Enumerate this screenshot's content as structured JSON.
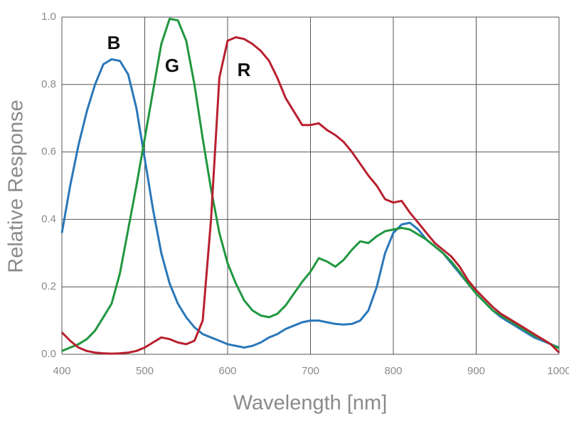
{
  "chart_data": {
    "type": "line",
    "xlabel": "Wavelength [nm]",
    "ylabel": "Relative Response",
    "xlim": [
      400,
      1000
    ],
    "ylim": [
      0,
      1
    ],
    "xticks": [
      400,
      500,
      600,
      700,
      800,
      900,
      1000
    ],
    "yticks": [
      {
        "value": 0,
        "label": "0.0"
      },
      0.2,
      0.4,
      0.6,
      0.8,
      {
        "value": 1,
        "label": "1.0"
      }
    ],
    "grid": true,
    "x": [
      400,
      410,
      420,
      430,
      440,
      450,
      460,
      470,
      480,
      490,
      500,
      510,
      520,
      530,
      540,
      550,
      560,
      570,
      580,
      590,
      600,
      610,
      620,
      630,
      640,
      650,
      660,
      670,
      680,
      690,
      700,
      710,
      720,
      730,
      740,
      750,
      760,
      770,
      780,
      790,
      800,
      810,
      820,
      830,
      840,
      850,
      860,
      870,
      880,
      890,
      900,
      910,
      920,
      930,
      940,
      950,
      960,
      970,
      980,
      990,
      1000
    ],
    "series": [
      {
        "name": "B",
        "color": "#2a77b9",
        "values": [
          0.36,
          0.5,
          0.62,
          0.72,
          0.8,
          0.86,
          0.875,
          0.87,
          0.83,
          0.73,
          0.58,
          0.43,
          0.3,
          0.21,
          0.15,
          0.11,
          0.08,
          0.06,
          0.05,
          0.04,
          0.03,
          0.025,
          0.02,
          0.025,
          0.035,
          0.05,
          0.06,
          0.075,
          0.085,
          0.095,
          0.1,
          0.1,
          0.095,
          0.09,
          0.088,
          0.09,
          0.1,
          0.13,
          0.2,
          0.3,
          0.36,
          0.385,
          0.39,
          0.37,
          0.34,
          0.32,
          0.3,
          0.27,
          0.24,
          0.21,
          0.18,
          0.155,
          0.13,
          0.11,
          0.095,
          0.08,
          0.065,
          0.05,
          0.04,
          0.03,
          0.02
        ]
      },
      {
        "name": "G",
        "color": "#20973f",
        "values": [
          0.01,
          0.02,
          0.03,
          0.045,
          0.07,
          0.11,
          0.15,
          0.24,
          0.37,
          0.5,
          0.64,
          0.78,
          0.92,
          0.995,
          0.99,
          0.93,
          0.8,
          0.64,
          0.49,
          0.36,
          0.27,
          0.21,
          0.16,
          0.13,
          0.115,
          0.11,
          0.12,
          0.145,
          0.18,
          0.215,
          0.245,
          0.285,
          0.275,
          0.26,
          0.28,
          0.31,
          0.335,
          0.33,
          0.35,
          0.365,
          0.37,
          0.375,
          0.37,
          0.355,
          0.34,
          0.32,
          0.3,
          0.275,
          0.245,
          0.21,
          0.18,
          0.155,
          0.13,
          0.115,
          0.1,
          0.085,
          0.07,
          0.055,
          0.045,
          0.03,
          0.018
        ]
      },
      {
        "name": "R",
        "color": "#b8202f",
        "values": [
          0.065,
          0.04,
          0.02,
          0.01,
          0.005,
          0.003,
          0.002,
          0.003,
          0.005,
          0.01,
          0.02,
          0.035,
          0.05,
          0.045,
          0.035,
          0.03,
          0.04,
          0.1,
          0.4,
          0.82,
          0.93,
          0.94,
          0.935,
          0.92,
          0.9,
          0.87,
          0.82,
          0.76,
          0.72,
          0.68,
          0.68,
          0.685,
          0.665,
          0.65,
          0.63,
          0.6,
          0.565,
          0.53,
          0.5,
          0.46,
          0.45,
          0.455,
          0.42,
          0.39,
          0.36,
          0.33,
          0.31,
          0.29,
          0.26,
          0.22,
          0.19,
          0.165,
          0.14,
          0.12,
          0.105,
          0.09,
          0.075,
          0.06,
          0.045,
          0.03,
          0.005
        ]
      }
    ]
  }
}
